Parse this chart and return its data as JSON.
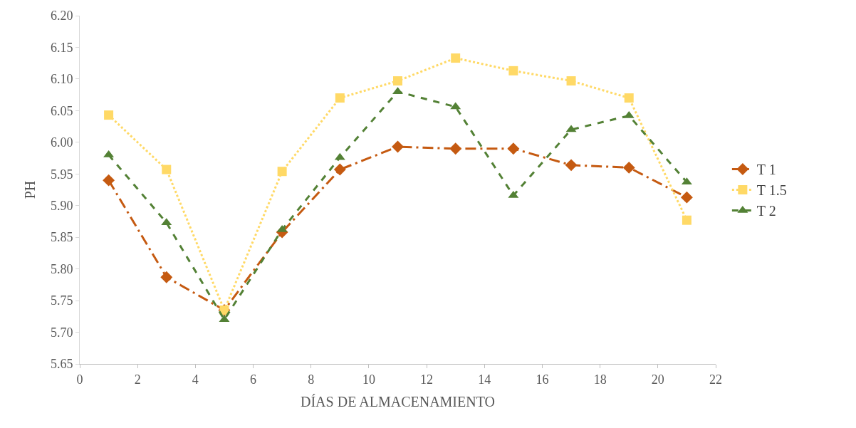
{
  "chart_data": {
    "type": "line",
    "xlabel": "DÍAS DE ALMACENAMIENTO",
    "ylabel": "PH",
    "x": [
      1,
      3,
      5,
      7,
      9,
      11,
      13,
      15,
      17,
      19,
      21
    ],
    "series": [
      {
        "name": "T 1",
        "color": "#c55a11",
        "marker": "diamond",
        "line_style": "dashdot",
        "values": [
          5.94,
          5.787,
          5.735,
          5.858,
          5.957,
          5.993,
          5.99,
          5.99,
          5.964,
          5.96,
          5.913
        ]
      },
      {
        "name": "T 1.5",
        "color": "#ffd966",
        "marker": "square",
        "line_style": "dotted",
        "values": [
          6.043,
          5.957,
          5.735,
          5.954,
          6.07,
          6.097,
          6.133,
          6.113,
          6.097,
          6.07,
          5.877
        ]
      },
      {
        "name": "T 2",
        "color": "#538135",
        "marker": "triangle",
        "line_style": "dashed",
        "values": [
          5.98,
          5.873,
          5.72,
          5.862,
          5.976,
          6.08,
          6.056,
          5.916,
          6.02,
          6.042,
          5.937
        ]
      }
    ],
    "xlim": [
      0,
      22
    ],
    "xticks": [
      0,
      2,
      4,
      6,
      8,
      10,
      12,
      14,
      16,
      18,
      20,
      22
    ],
    "ylim": [
      5.65,
      6.2
    ],
    "yticks": [
      5.65,
      {
        "value": 5.7,
        "label": "5.70"
      },
      5.75,
      {
        "value": 5.8,
        "label": "5.80"
      },
      5.85,
      {
        "value": 5.9,
        "label": "5.90"
      },
      5.95,
      {
        "value": 6.0,
        "label": "6.00"
      },
      6.05,
      {
        "value": 6.1,
        "label": "6.10"
      },
      6.15,
      {
        "value": 6.2,
        "label": "6.20"
      }
    ],
    "legend": "right"
  }
}
